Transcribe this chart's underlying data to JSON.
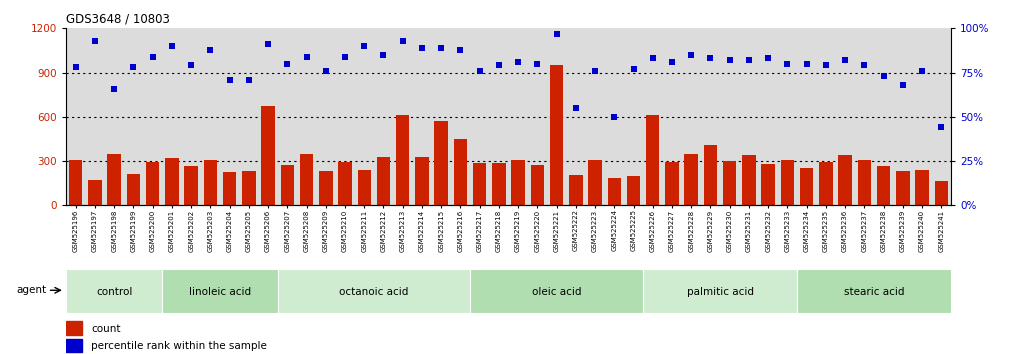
{
  "title": "GDS3648 / 10803",
  "samples": [
    "GSM525196",
    "GSM525197",
    "GSM525198",
    "GSM525199",
    "GSM525200",
    "GSM525201",
    "GSM525202",
    "GSM525203",
    "GSM525204",
    "GSM525205",
    "GSM525206",
    "GSM525207",
    "GSM525208",
    "GSM525209",
    "GSM525210",
    "GSM525211",
    "GSM525212",
    "GSM525213",
    "GSM525214",
    "GSM525215",
    "GSM525216",
    "GSM525217",
    "GSM525218",
    "GSM525219",
    "GSM525220",
    "GSM525221",
    "GSM525222",
    "GSM525223",
    "GSM525224",
    "GSM525225",
    "GSM525226",
    "GSM525227",
    "GSM525228",
    "GSM525229",
    "GSM525230",
    "GSM525231",
    "GSM525232",
    "GSM525233",
    "GSM525234",
    "GSM525235",
    "GSM525236",
    "GSM525237",
    "GSM525238",
    "GSM525239",
    "GSM525240",
    "GSM525241"
  ],
  "counts": [
    310,
    175,
    350,
    210,
    295,
    320,
    265,
    310,
    225,
    230,
    670,
    270,
    350,
    230,
    295,
    240,
    330,
    610,
    330,
    570,
    450,
    285,
    285,
    310,
    270,
    950,
    205,
    310,
    185,
    200,
    610,
    295,
    345,
    410,
    300,
    340,
    280,
    305,
    250,
    295,
    340,
    310,
    265,
    230,
    240,
    165
  ],
  "percentiles": [
    78,
    93,
    66,
    78,
    84,
    90,
    79,
    88,
    71,
    71,
    91,
    80,
    84,
    76,
    84,
    90,
    85,
    93,
    89,
    89,
    88,
    76,
    79,
    81,
    80,
    97,
    55,
    76,
    50,
    77,
    83,
    81,
    85,
    83,
    82,
    82,
    83,
    80,
    80,
    79,
    82,
    79,
    73,
    68,
    76,
    44
  ],
  "groups": [
    {
      "label": "control",
      "start": 0,
      "end": 5
    },
    {
      "label": "linoleic acid",
      "start": 5,
      "end": 11
    },
    {
      "label": "octanoic acid",
      "start": 11,
      "end": 21
    },
    {
      "label": "oleic acid",
      "start": 21,
      "end": 30
    },
    {
      "label": "palmitic acid",
      "start": 30,
      "end": 38
    },
    {
      "label": "stearic acid",
      "start": 38,
      "end": 46
    }
  ],
  "bar_color": "#cc2200",
  "dot_color": "#0000cc",
  "left_ylim": [
    0,
    1200
  ],
  "right_ylim": [
    0,
    100
  ],
  "left_yticks": [
    0,
    300,
    600,
    900,
    1200
  ],
  "right_yticks": [
    0,
    25,
    50,
    75,
    100
  ],
  "right_yticklabels": [
    "0%",
    "25%",
    "50%",
    "75%",
    "100%"
  ],
  "bg_color": "#dcdcdc",
  "group_colors_cycle": [
    "#d0ecd0",
    "#b0deb0"
  ],
  "gridline_color": "#000000"
}
